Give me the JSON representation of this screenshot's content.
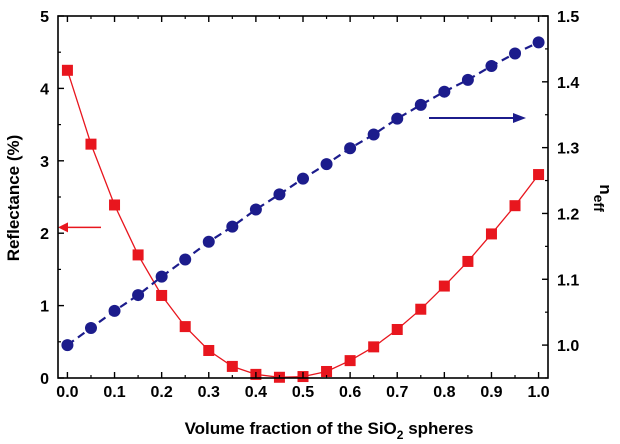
{
  "chart_data": {
    "type": "line",
    "xlabel": {
      "main": "Volume fraction of the SiO",
      "sub": "2",
      "tail": " spheres"
    },
    "ylabel_left": "Reflectance (%)",
    "ylabel_right": {
      "main": "n",
      "sub": "eff"
    },
    "xlim": [
      -0.02,
      1.02
    ],
    "ylim_left": [
      0,
      5
    ],
    "ylim_right": [
      0.95,
      1.5
    ],
    "x_ticks": [
      "0.0",
      "0.1",
      "0.2",
      "0.3",
      "0.4",
      "0.5",
      "0.6",
      "0.7",
      "0.8",
      "0.9",
      "1.0"
    ],
    "y_left_ticks": [
      "0",
      "1",
      "2",
      "3",
      "4",
      "5"
    ],
    "y_right_ticks": [
      "1.0",
      "1.1",
      "1.2",
      "1.3",
      "1.4",
      "1.5"
    ],
    "x": [
      0.0,
      0.05,
      0.1,
      0.15,
      0.2,
      0.25,
      0.3,
      0.35,
      0.4,
      0.45,
      0.5,
      0.55,
      0.6,
      0.65,
      0.7,
      0.75,
      0.8,
      0.85,
      0.9,
      0.95,
      1.0
    ],
    "series": [
      {
        "axis": "left",
        "color": "#e8161e",
        "marker": "square",
        "line": "solid",
        "values": [
          4.25,
          3.23,
          2.39,
          1.7,
          1.14,
          0.71,
          0.38,
          0.16,
          0.05,
          0.01,
          0.02,
          0.09,
          0.24,
          0.43,
          0.67,
          0.95,
          1.27,
          1.61,
          1.99,
          2.38,
          2.81
        ]
      },
      {
        "axis": "right",
        "color": "#1c1c8c",
        "marker": "circle",
        "line": "dashed",
        "values": [
          1.0,
          1.026,
          1.052,
          1.076,
          1.104,
          1.13,
          1.157,
          1.18,
          1.206,
          1.229,
          1.253,
          1.275,
          1.299,
          1.32,
          1.344,
          1.365,
          1.385,
          1.403,
          1.424,
          1.443,
          1.46
        ]
      }
    ],
    "annotations": [
      {
        "type": "arrow",
        "direction": "left",
        "target_axis": "left",
        "color": "#e8161e"
      },
      {
        "type": "arrow",
        "direction": "right",
        "target_axis": "right",
        "color": "#1c1c8c"
      }
    ]
  }
}
